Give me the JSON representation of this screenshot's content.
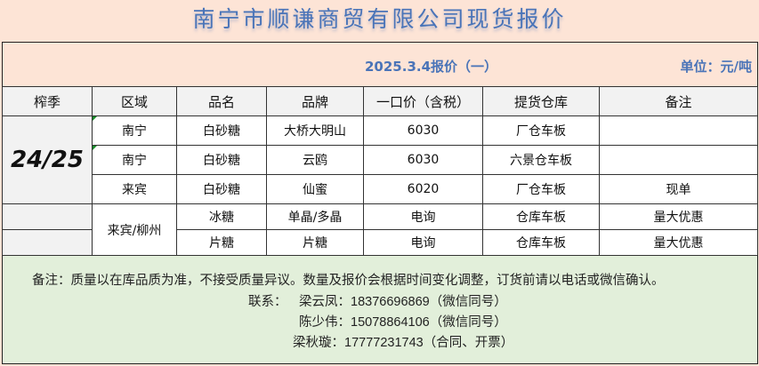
{
  "title": "南宁市顺谦商贸有限公司现货报价",
  "date_label": "2025.3.4报价（一）",
  "unit_label": "单位：元/吨",
  "headers": [
    "榨季",
    "区域",
    "品名",
    "品牌",
    "一口价（含税）",
    "提货仓库",
    "备注"
  ],
  "season": "24/25",
  "rows": [
    {
      "region": "南宁",
      "product": "白砂糖",
      "brand": "大桥大明山",
      "price": "6030",
      "warehouse": "厂仓车板",
      "note": ""
    },
    {
      "region": "南宁",
      "product": "白砂糖",
      "brand": "云鸥",
      "price": "6030",
      "warehouse": "六景仓车板",
      "note": ""
    },
    {
      "region": "来宾",
      "product": "白砂糖",
      "brand": "仙蜜",
      "price": "6020",
      "warehouse": "厂仓车板",
      "note": "现单"
    },
    {
      "region": "来宾/柳州",
      "product": "冰糖",
      "brand": "单晶/多晶",
      "price": "电询",
      "warehouse": "仓库车板",
      "note": "量大优惠"
    },
    {
      "product": "片糖",
      "brand": "片糖",
      "price": "电询",
      "warehouse": "仓库车板",
      "note": "量大优惠"
    }
  ],
  "notes": {
    "remark": "备注：质量以在库品质为准，不接受质量异议。数量及报价会根据时间变化调整，订货前请以电话或微信确认。",
    "contact_label": "联系：",
    "contacts": [
      "梁云凤：18376696869（微信同号）",
      "陈少伟：15078864106（微信同号）",
      "梁秋璇：17777231743（合同、开票）"
    ]
  },
  "colors": {
    "accent": "#4a74b8",
    "background": "#fde4d6",
    "notes_bg": "#e2efda"
  }
}
